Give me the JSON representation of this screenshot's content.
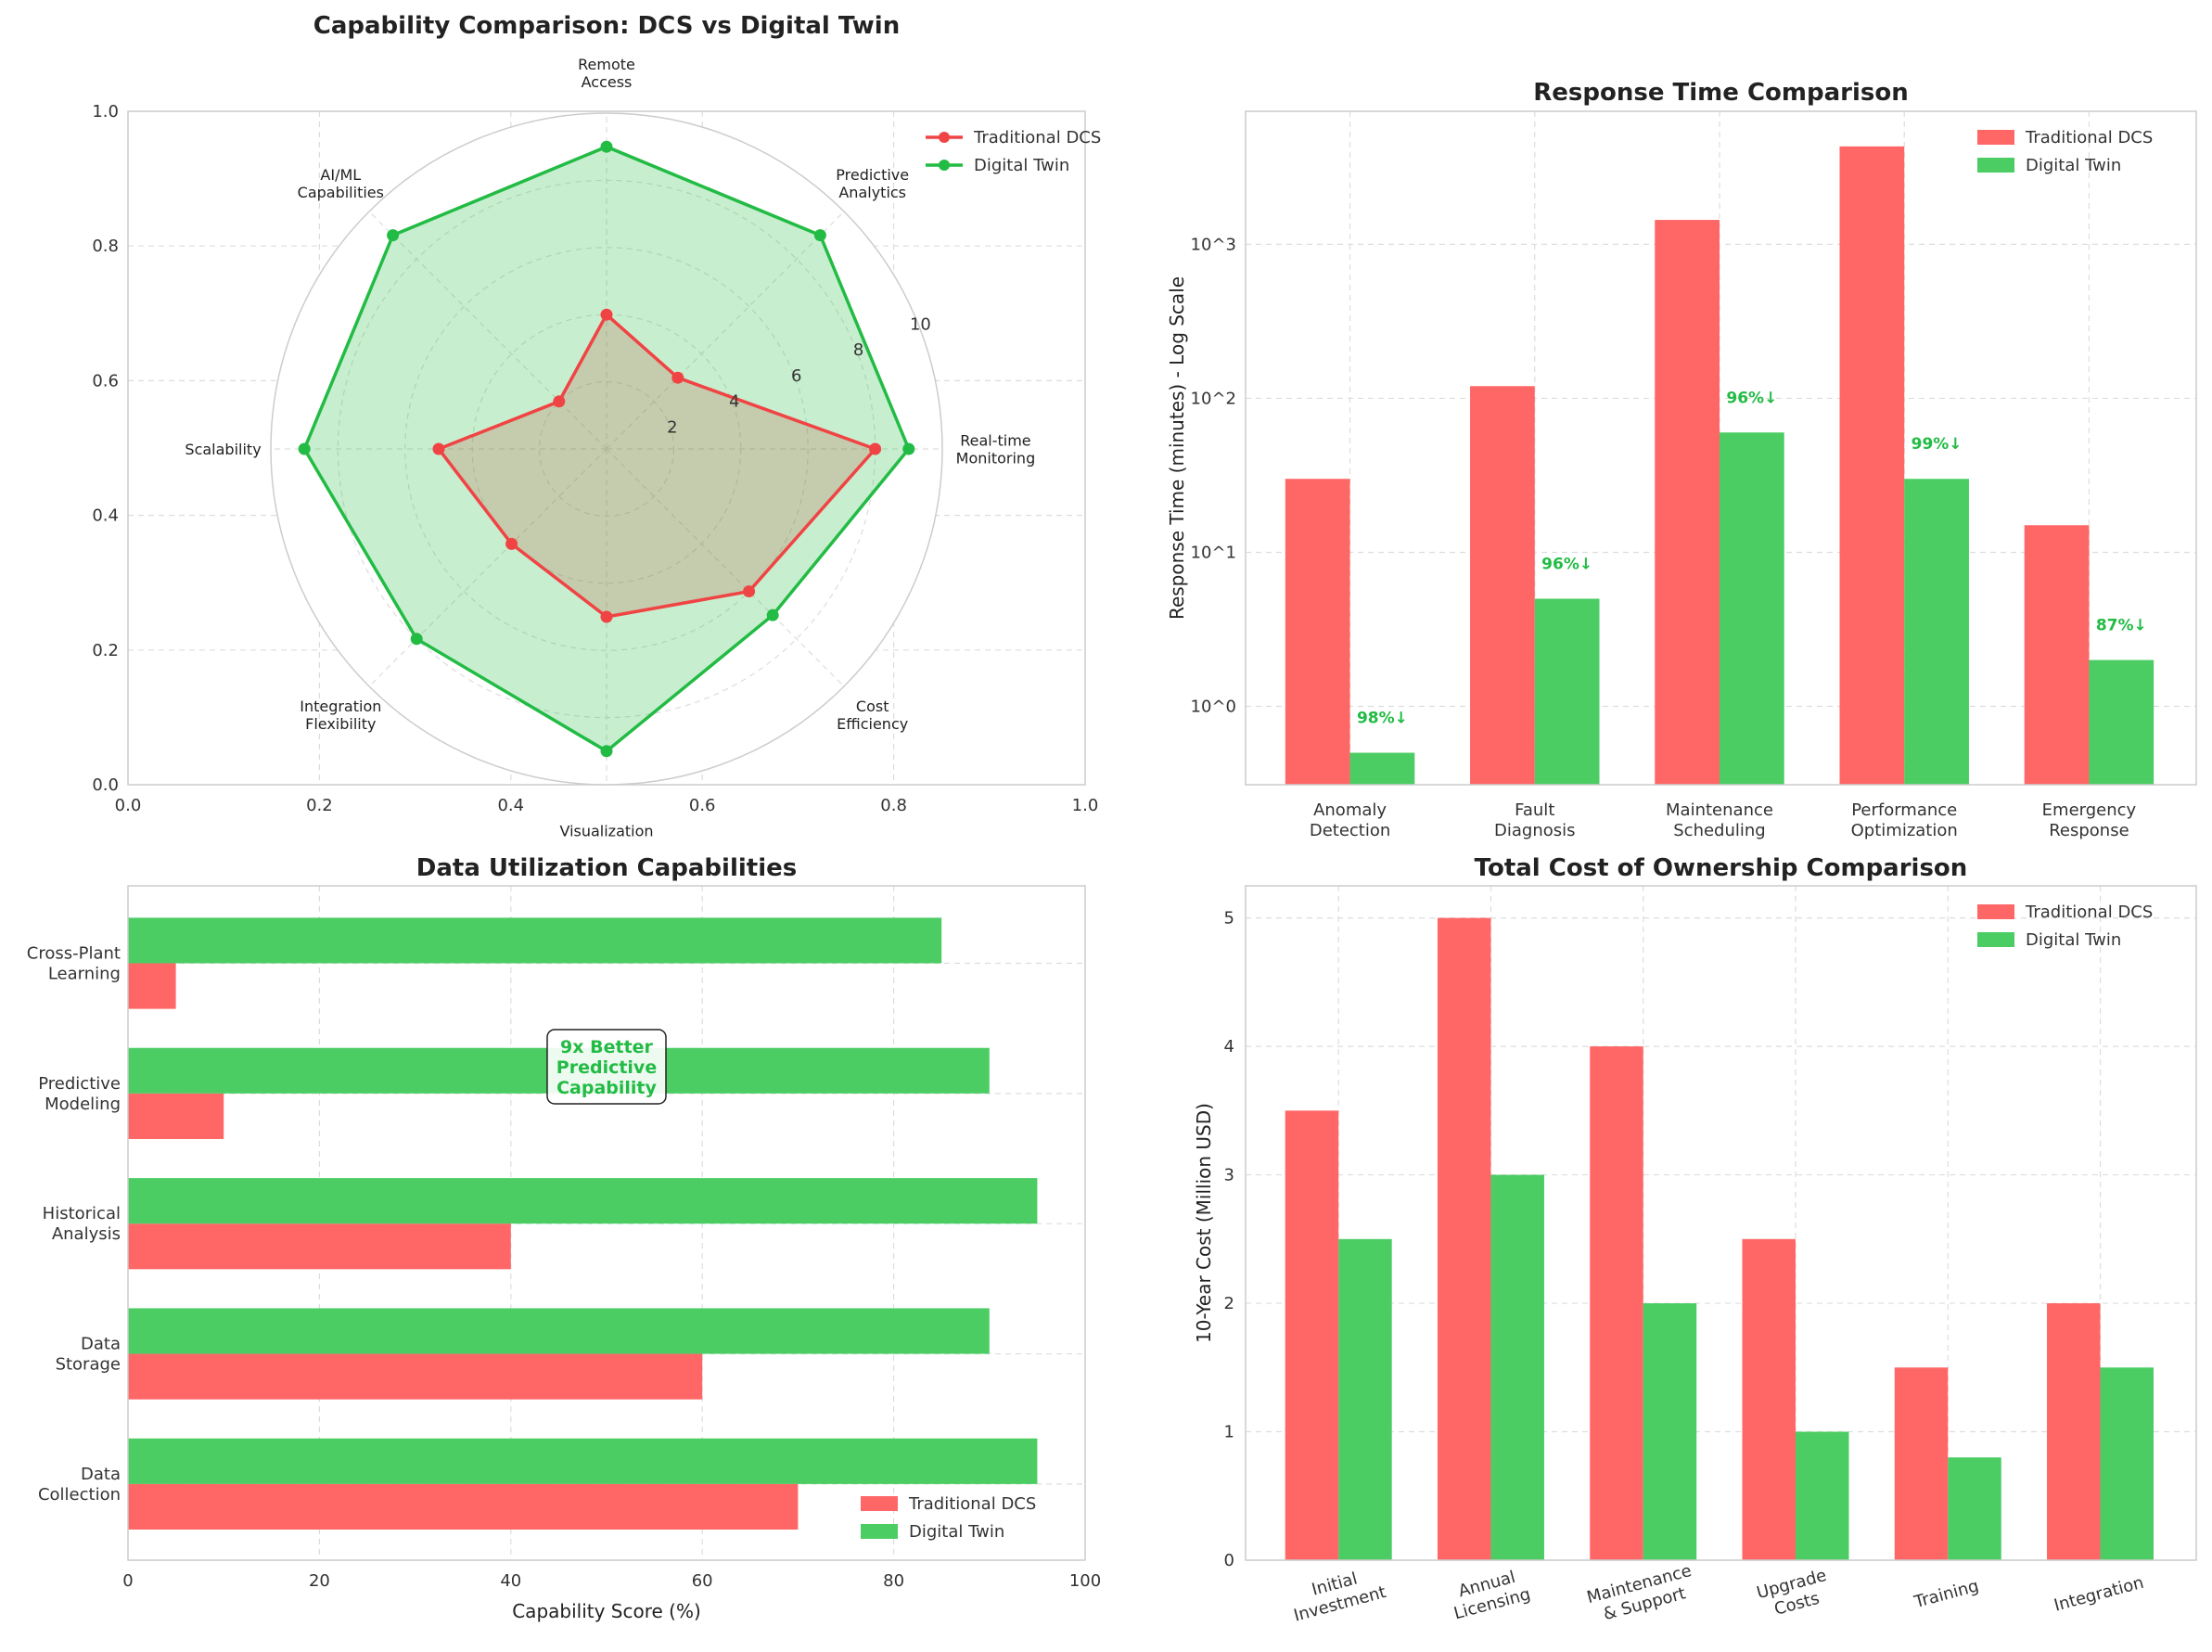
{
  "chart_data": [
    {
      "type": "radar",
      "title": "Capability Comparison: DCS vs Digital Twin",
      "categories": [
        "Real-time\nMonitoring",
        "Predictive\nAnalytics",
        "Remote\nAccess",
        "AI/ML\nCapabilities",
        "Scalability",
        "Integration\nFlexibility",
        "Visualization",
        "Cost\nEfficiency"
      ],
      "rlim": [
        0,
        10
      ],
      "r_ticks": [
        "2",
        "4",
        "6",
        "8",
        "10"
      ],
      "frame_ticks": [
        "0.0",
        "0.2",
        "0.4",
        "0.6",
        "0.8",
        "1.0"
      ],
      "series": [
        {
          "name": "Traditional DCS",
          "values": [
            8,
            3,
            4,
            2,
            5,
            4,
            5,
            6
          ],
          "color": "#f04444"
        },
        {
          "name": "Digital Twin",
          "values": [
            9,
            9,
            9,
            9,
            9,
            8,
            9,
            7
          ],
          "color": "#22bb44"
        }
      ],
      "legend": "top-right",
      "grid": true
    },
    {
      "type": "bar",
      "title": "Response Time Comparison",
      "ylabel": "Response Time (minutes) - Log Scale",
      "yscale": "log",
      "ylim": [
        0.31,
        7300
      ],
      "y_ticks": [
        "10^0",
        "10^1",
        "10^2",
        "10^3"
      ],
      "categories": [
        "Anomaly\nDetection",
        "Fault\nDiagnosis",
        "Maintenance\nScheduling",
        "Performance\nOptimization",
        "Emergency\nResponse"
      ],
      "series": [
        {
          "name": "Traditional DCS",
          "values": [
            30,
            120,
            1440,
            4320,
            15
          ],
          "color": "#ff6666"
        },
        {
          "name": "Digital Twin",
          "values": [
            0.5,
            5,
            60,
            30,
            2
          ],
          "color": "#4ccd64"
        }
      ],
      "annotations": [
        "98%↓",
        "96%↓",
        "96%↓",
        "99%↓",
        "87%↓"
      ],
      "annotation_color": "#22bb44",
      "legend": "top-right",
      "grid": true
    },
    {
      "type": "barh",
      "title": "Data Utilization Capabilities",
      "xlabel": "Capability Score (%)",
      "xlim": [
        0,
        100
      ],
      "x_ticks": [
        "0",
        "20",
        "40",
        "60",
        "80",
        "100"
      ],
      "categories": [
        "Data\nCollection",
        "Data\nStorage",
        "Historical\nAnalysis",
        "Predictive\nModeling",
        "Cross-Plant\nLearning"
      ],
      "series": [
        {
          "name": "Traditional DCS",
          "values": [
            70,
            60,
            40,
            10,
            5
          ],
          "color": "#ff6666"
        },
        {
          "name": "Digital Twin",
          "values": [
            95,
            90,
            95,
            90,
            85
          ],
          "color": "#4ccd64"
        }
      ],
      "annotation": "9x Better\nPredictive\nCapability",
      "annotation_color": "#22bb44",
      "legend": "lower-right",
      "grid": true
    },
    {
      "type": "bar",
      "title": "Total Cost of Ownership Comparison",
      "ylabel": "10-Year Cost (Million USD)",
      "ylim": [
        0,
        5.25
      ],
      "y_ticks": [
        "0",
        "1",
        "2",
        "3",
        "4",
        "5"
      ],
      "categories": [
        "Initial\nInvestment",
        "Annual\nLicensing",
        "Maintenance\n& Support",
        "Upgrade\nCosts",
        "Training",
        "Integration"
      ],
      "series": [
        {
          "name": "Traditional DCS",
          "values": [
            3.5,
            5,
            4,
            2.5,
            1.5,
            2
          ],
          "color": "#ff6666"
        },
        {
          "name": "Digital Twin",
          "values": [
            2.5,
            3,
            2,
            1,
            0.8,
            1.5
          ],
          "color": "#4ccd64"
        }
      ],
      "legend": "top-right",
      "grid": true
    }
  ]
}
